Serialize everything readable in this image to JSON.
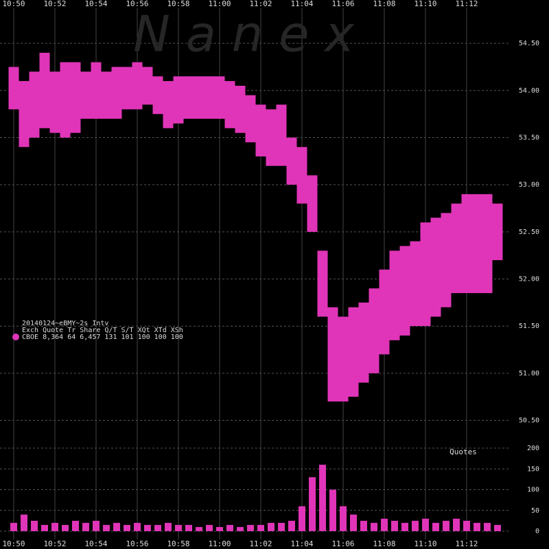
{
  "watermark": "N a n e x",
  "legend": {
    "lines": [
      "20140124~eBMY~2s Intv",
      "Exch Quote Tr Share  Q/T    S/T  XQt XTd XSh",
      "CBOE 8,364 64 6,457   131   101 100 100 100"
    ],
    "color": "#e035b8"
  },
  "chart_data": [
    {
      "type": "range",
      "color": "#e035b8",
      "categories": [
        "10:50",
        null,
        null,
        null,
        "10:52",
        null,
        null,
        null,
        "10:54",
        null,
        null,
        null,
        "10:56",
        null,
        null,
        null,
        "10:58",
        null,
        null,
        null,
        "11:00",
        null,
        null,
        null,
        "11:02",
        null,
        null,
        null,
        "11:04",
        null,
        null,
        null,
        "11:06",
        null,
        null,
        null,
        "11:08",
        null,
        null,
        null,
        "11:10",
        null,
        null,
        null,
        "11:12",
        null,
        null,
        null
      ],
      "high": [
        54.25,
        54.1,
        54.2,
        54.4,
        54.2,
        54.3,
        54.3,
        54.2,
        54.3,
        54.2,
        54.25,
        54.25,
        54.3,
        54.25,
        54.15,
        54.1,
        54.15,
        54.15,
        54.15,
        54.15,
        54.15,
        54.1,
        54.05,
        53.95,
        53.85,
        53.8,
        53.85,
        53.5,
        53.4,
        53.1,
        52.3,
        51.7,
        51.6,
        51.7,
        51.75,
        51.9,
        52.1,
        52.3,
        52.35,
        52.4,
        52.6,
        52.65,
        52.7,
        52.8,
        52.9,
        52.9,
        52.9,
        52.8
      ],
      "low": [
        53.8,
        53.4,
        53.5,
        53.6,
        53.55,
        53.5,
        53.55,
        53.7,
        53.7,
        53.7,
        53.7,
        53.8,
        53.8,
        53.85,
        53.75,
        53.6,
        53.65,
        53.7,
        53.7,
        53.7,
        53.7,
        53.6,
        53.55,
        53.45,
        53.3,
        53.2,
        53.2,
        53.0,
        52.8,
        52.5,
        51.6,
        50.7,
        50.7,
        50.75,
        50.9,
        51.0,
        51.2,
        51.35,
        51.4,
        51.5,
        51.5,
        51.6,
        51.7,
        51.85,
        51.85,
        51.85,
        51.85,
        52.2
      ],
      "ylim": [
        50.3,
        54.96
      ],
      "yticks": [
        {
          "value": 50.5,
          "label": "50.50"
        },
        {
          "value": 51,
          "label": "51.00"
        },
        {
          "value": 51.5,
          "label": "51.50"
        },
        {
          "value": 52,
          "label": "52.00"
        },
        {
          "value": 52.5,
          "label": "52.50"
        },
        {
          "value": 53,
          "label": "53.00"
        },
        {
          "value": 53.5,
          "label": "53.50"
        },
        {
          "value": 54,
          "label": "54.00"
        },
        {
          "value": 54.5,
          "label": "54.50"
        }
      ],
      "grid": true
    },
    {
      "type": "bar",
      "title": "Quotes",
      "color": "#e035b8",
      "categories": [
        "10:50",
        null,
        null,
        null,
        "10:52",
        null,
        null,
        null,
        "10:54",
        null,
        null,
        null,
        "10:56",
        null,
        null,
        null,
        "10:58",
        null,
        null,
        null,
        "11:00",
        null,
        null,
        null,
        "11:02",
        null,
        null,
        null,
        "11:04",
        null,
        null,
        null,
        "11:06",
        null,
        null,
        null,
        "11:08",
        null,
        null,
        null,
        "11:10",
        null,
        null,
        null,
        "11:12",
        null,
        null,
        null
      ],
      "values": [
        20,
        40,
        25,
        15,
        20,
        15,
        25,
        20,
        25,
        15,
        20,
        15,
        20,
        15,
        15,
        20,
        15,
        15,
        10,
        15,
        10,
        15,
        10,
        15,
        15,
        20,
        20,
        25,
        60,
        130,
        160,
        100,
        60,
        40,
        25,
        20,
        30,
        25,
        20,
        25,
        30,
        20,
        25,
        30,
        25,
        20,
        20,
        15
      ],
      "ylim": [
        0,
        200
      ],
      "yticks": [
        0,
        50,
        100,
        150,
        200
      ],
      "grid": true
    }
  ]
}
